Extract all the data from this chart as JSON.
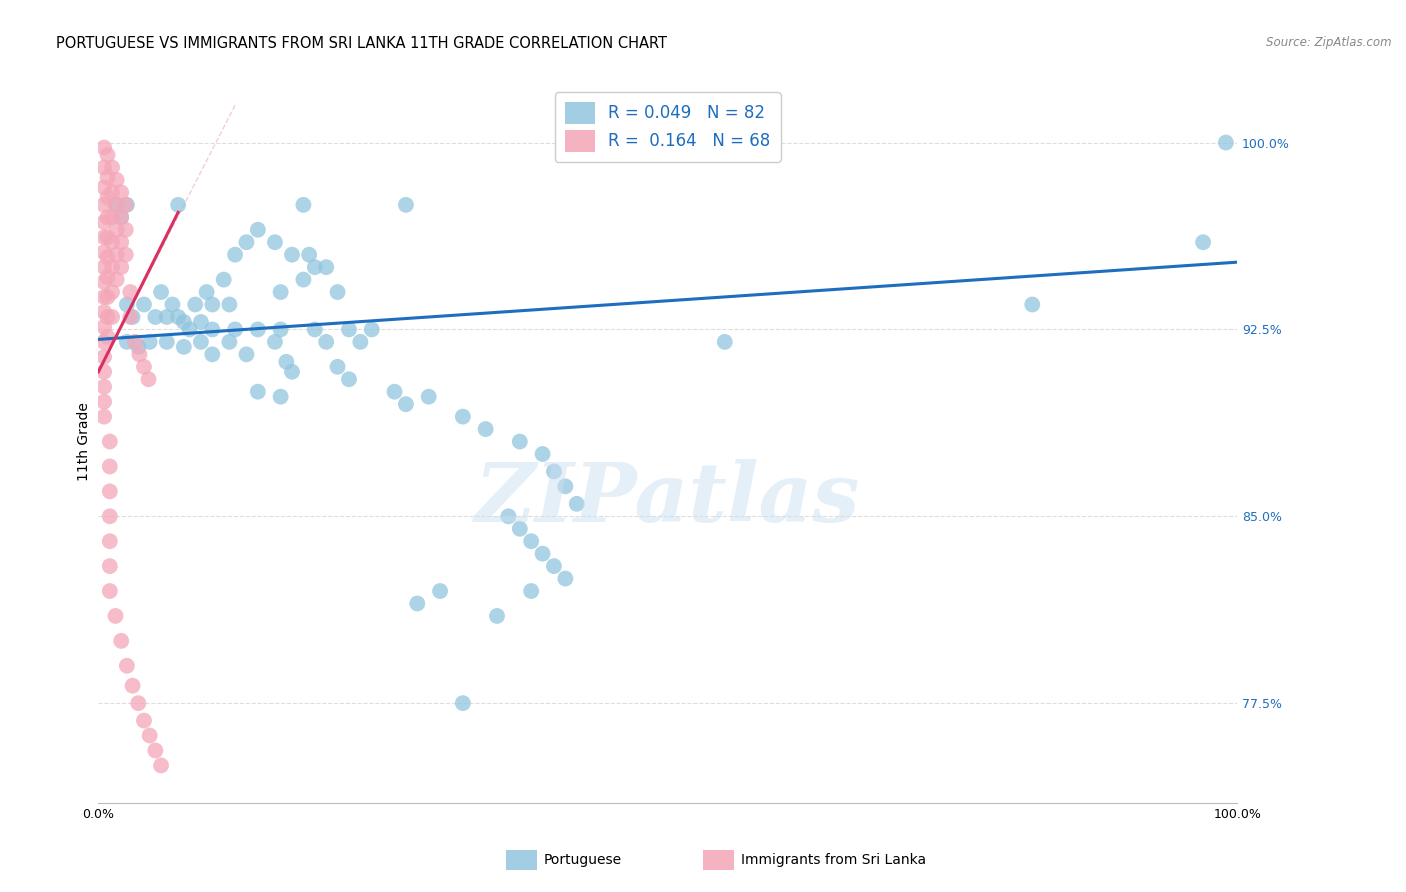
{
  "title": "PORTUGUESE VS IMMIGRANTS FROM SRI LANKA 11TH GRADE CORRELATION CHART",
  "source": "Source: ZipAtlas.com",
  "ylabel": "11th Grade",
  "xlim": [
    0,
    1
  ],
  "ylim": [
    0.735,
    1.025
  ],
  "yticks": [
    0.775,
    0.85,
    0.925,
    1.0
  ],
  "ytick_labels": [
    "77.5%",
    "85.0%",
    "92.5%",
    "100.0%"
  ],
  "xticks": [
    0.0,
    0.25,
    0.5,
    0.75,
    1.0
  ],
  "xtick_labels": [
    "0.0%",
    "",
    "",
    "",
    "100.0%"
  ],
  "watermark": "ZIPatlas",
  "blue_color": "#92c5de",
  "pink_color": "#f4a6b8",
  "line_blue": "#1f6dbf",
  "line_pink": "#d93060",
  "blue_scatter": [
    [
      0.015,
      0.975
    ],
    [
      0.02,
      0.97
    ],
    [
      0.025,
      0.975
    ],
    [
      0.07,
      0.975
    ],
    [
      0.18,
      0.975
    ],
    [
      0.27,
      0.975
    ],
    [
      0.14,
      0.965
    ],
    [
      0.155,
      0.96
    ],
    [
      0.13,
      0.96
    ],
    [
      0.17,
      0.955
    ],
    [
      0.12,
      0.955
    ],
    [
      0.185,
      0.955
    ],
    [
      0.19,
      0.95
    ],
    [
      0.2,
      0.95
    ],
    [
      0.11,
      0.945
    ],
    [
      0.18,
      0.945
    ],
    [
      0.16,
      0.94
    ],
    [
      0.21,
      0.94
    ],
    [
      0.055,
      0.94
    ],
    [
      0.095,
      0.94
    ],
    [
      0.065,
      0.935
    ],
    [
      0.085,
      0.935
    ],
    [
      0.1,
      0.935
    ],
    [
      0.115,
      0.935
    ],
    [
      0.04,
      0.935
    ],
    [
      0.025,
      0.935
    ],
    [
      0.03,
      0.93
    ],
    [
      0.05,
      0.93
    ],
    [
      0.06,
      0.93
    ],
    [
      0.07,
      0.93
    ],
    [
      0.075,
      0.928
    ],
    [
      0.09,
      0.928
    ],
    [
      0.08,
      0.925
    ],
    [
      0.1,
      0.925
    ],
    [
      0.12,
      0.925
    ],
    [
      0.14,
      0.925
    ],
    [
      0.16,
      0.925
    ],
    [
      0.19,
      0.925
    ],
    [
      0.22,
      0.925
    ],
    [
      0.24,
      0.925
    ],
    [
      0.025,
      0.92
    ],
    [
      0.045,
      0.92
    ],
    [
      0.06,
      0.92
    ],
    [
      0.09,
      0.92
    ],
    [
      0.115,
      0.92
    ],
    [
      0.155,
      0.92
    ],
    [
      0.2,
      0.92
    ],
    [
      0.23,
      0.92
    ],
    [
      0.035,
      0.918
    ],
    [
      0.075,
      0.918
    ],
    [
      0.1,
      0.915
    ],
    [
      0.13,
      0.915
    ],
    [
      0.165,
      0.912
    ],
    [
      0.21,
      0.91
    ],
    [
      0.17,
      0.908
    ],
    [
      0.22,
      0.905
    ],
    [
      0.14,
      0.9
    ],
    [
      0.16,
      0.898
    ],
    [
      0.26,
      0.9
    ],
    [
      0.29,
      0.898
    ],
    [
      0.27,
      0.895
    ],
    [
      0.32,
      0.89
    ],
    [
      0.34,
      0.885
    ],
    [
      0.37,
      0.88
    ],
    [
      0.39,
      0.875
    ],
    [
      0.4,
      0.868
    ],
    [
      0.41,
      0.862
    ],
    [
      0.42,
      0.855
    ],
    [
      0.36,
      0.85
    ],
    [
      0.37,
      0.845
    ],
    [
      0.38,
      0.84
    ],
    [
      0.39,
      0.835
    ],
    [
      0.4,
      0.83
    ],
    [
      0.41,
      0.825
    ],
    [
      0.38,
      0.82
    ],
    [
      0.3,
      0.82
    ],
    [
      0.28,
      0.815
    ],
    [
      0.35,
      0.81
    ],
    [
      0.32,
      0.775
    ],
    [
      0.55,
      0.92
    ],
    [
      0.82,
      0.935
    ],
    [
      0.97,
      0.96
    ],
    [
      0.99,
      1.0
    ]
  ],
  "pink_scatter": [
    [
      0.005,
      0.998
    ],
    [
      0.005,
      0.99
    ],
    [
      0.005,
      0.982
    ],
    [
      0.005,
      0.975
    ],
    [
      0.005,
      0.968
    ],
    [
      0.005,
      0.962
    ],
    [
      0.005,
      0.956
    ],
    [
      0.005,
      0.95
    ],
    [
      0.005,
      0.944
    ],
    [
      0.005,
      0.938
    ],
    [
      0.005,
      0.932
    ],
    [
      0.005,
      0.926
    ],
    [
      0.005,
      0.92
    ],
    [
      0.005,
      0.914
    ],
    [
      0.005,
      0.908
    ],
    [
      0.005,
      0.902
    ],
    [
      0.005,
      0.896
    ],
    [
      0.005,
      0.89
    ],
    [
      0.008,
      0.995
    ],
    [
      0.008,
      0.986
    ],
    [
      0.008,
      0.978
    ],
    [
      0.008,
      0.97
    ],
    [
      0.008,
      0.962
    ],
    [
      0.008,
      0.954
    ],
    [
      0.008,
      0.946
    ],
    [
      0.008,
      0.938
    ],
    [
      0.008,
      0.93
    ],
    [
      0.008,
      0.922
    ],
    [
      0.012,
      0.99
    ],
    [
      0.012,
      0.98
    ],
    [
      0.012,
      0.97
    ],
    [
      0.012,
      0.96
    ],
    [
      0.012,
      0.95
    ],
    [
      0.012,
      0.94
    ],
    [
      0.012,
      0.93
    ],
    [
      0.016,
      0.985
    ],
    [
      0.016,
      0.975
    ],
    [
      0.016,
      0.965
    ],
    [
      0.016,
      0.955
    ],
    [
      0.016,
      0.945
    ],
    [
      0.02,
      0.98
    ],
    [
      0.02,
      0.97
    ],
    [
      0.02,
      0.96
    ],
    [
      0.02,
      0.95
    ],
    [
      0.024,
      0.975
    ],
    [
      0.024,
      0.965
    ],
    [
      0.024,
      0.955
    ],
    [
      0.028,
      0.94
    ],
    [
      0.028,
      0.93
    ],
    [
      0.032,
      0.92
    ],
    [
      0.036,
      0.915
    ],
    [
      0.04,
      0.91
    ],
    [
      0.044,
      0.905
    ],
    [
      0.01,
      0.88
    ],
    [
      0.01,
      0.87
    ],
    [
      0.01,
      0.86
    ],
    [
      0.01,
      0.85
    ],
    [
      0.01,
      0.84
    ],
    [
      0.01,
      0.83
    ],
    [
      0.01,
      0.82
    ],
    [
      0.015,
      0.81
    ],
    [
      0.02,
      0.8
    ],
    [
      0.025,
      0.79
    ],
    [
      0.03,
      0.782
    ],
    [
      0.035,
      0.775
    ],
    [
      0.04,
      0.768
    ],
    [
      0.045,
      0.762
    ],
    [
      0.05,
      0.756
    ],
    [
      0.055,
      0.75
    ]
  ],
  "blue_line": [
    [
      0.0,
      0.921
    ],
    [
      1.0,
      0.952
    ]
  ],
  "pink_line": [
    [
      0.0,
      0.908
    ],
    [
      0.07,
      0.972
    ]
  ],
  "diag_line": [
    [
      0.0,
      0.908
    ],
    [
      0.12,
      1.015
    ]
  ],
  "grid_color": "#dddddd",
  "title_fontsize": 10.5,
  "tick_fontsize": 9,
  "legend_fontsize": 12
}
